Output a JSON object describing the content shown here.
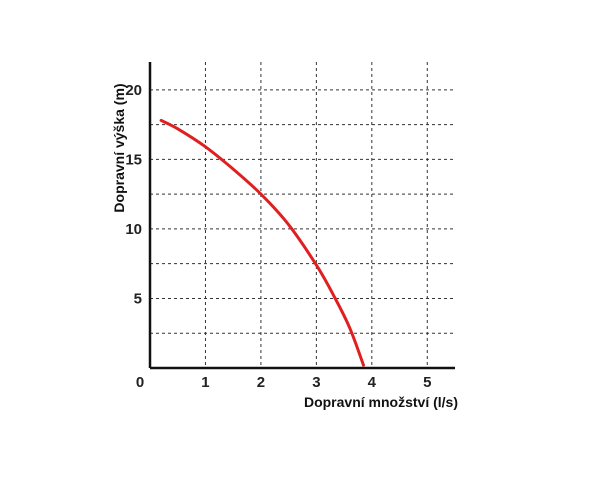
{
  "chart_data": {
    "type": "line",
    "title": "",
    "xlabel": "Dopravní množství (l/s)",
    "ylabel": "Dopravní výška (m)",
    "xlim": [
      0,
      5.5
    ],
    "ylim": [
      0,
      22
    ],
    "x_ticks": [
      0,
      1,
      2,
      3,
      4,
      5
    ],
    "y_ticks": [
      5,
      10,
      15,
      20
    ],
    "x_tick_labels": [
      "0",
      "1",
      "2",
      "3",
      "4",
      "5"
    ],
    "y_tick_labels": [
      "5",
      "10",
      "15",
      "20"
    ],
    "grid": true,
    "grid_x_step": 1,
    "grid_y_step": 2.5,
    "series": [
      {
        "color": "#e02020",
        "x": [
          0.2,
          0.5,
          1.0,
          1.5,
          2.0,
          2.5,
          3.0,
          3.3,
          3.6,
          3.85
        ],
        "y": [
          17.8,
          17.2,
          15.9,
          14.3,
          12.5,
          10.3,
          7.4,
          5.3,
          2.9,
          0.2
        ]
      }
    ]
  }
}
